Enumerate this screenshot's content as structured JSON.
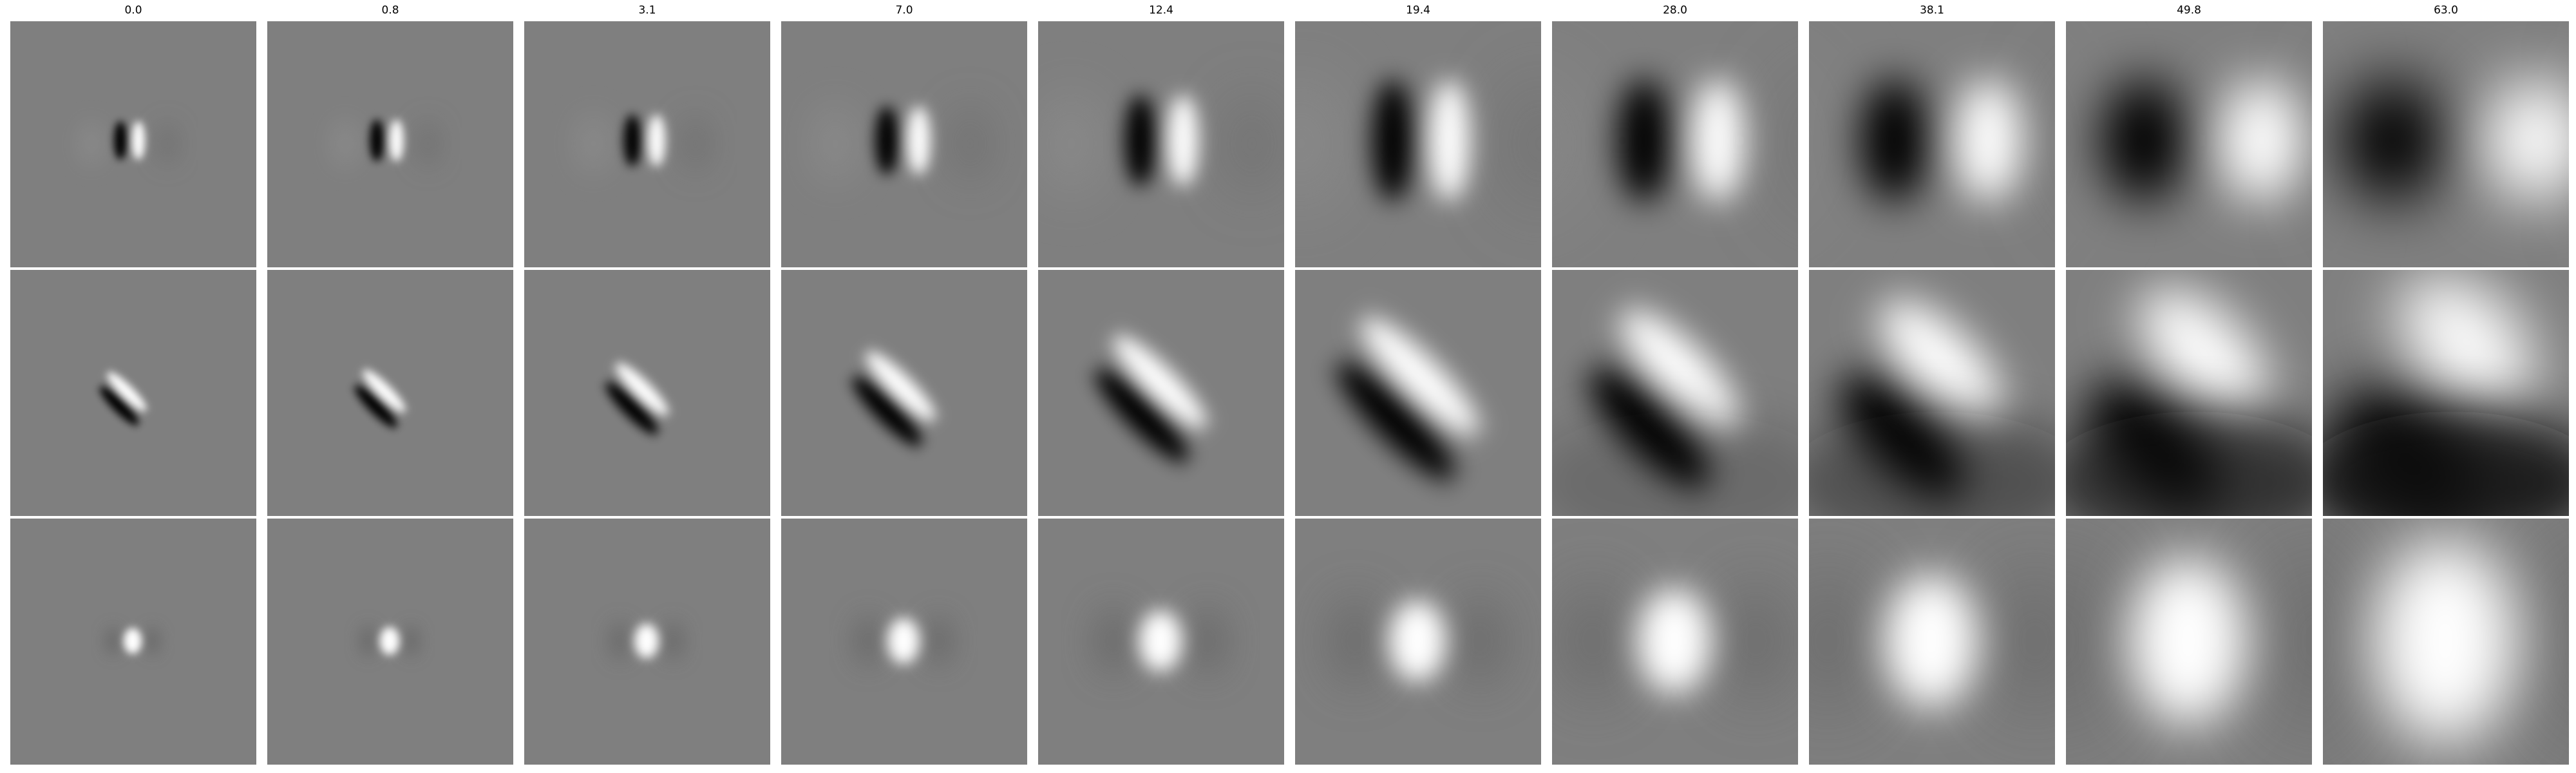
{
  "column_titles": [
    "0.0",
    "0.8",
    "3.1",
    "7.0",
    "12.4",
    "19.4",
    "28.0",
    "38.1",
    "49.8",
    "63.0"
  ],
  "rows": [
    {
      "pattern": "vertical-dipole",
      "background": "#7f7f7f",
      "cells": [
        {
          "scale": 0.0,
          "contrast": 1.0
        },
        {
          "scale": 0.8,
          "contrast": 1.0
        },
        {
          "scale": 3.1,
          "contrast": 1.0
        },
        {
          "scale": 7.0,
          "contrast": 1.0
        },
        {
          "scale": 12.4,
          "contrast": 1.0
        },
        {
          "scale": 19.4,
          "contrast": 1.0
        },
        {
          "scale": 28.0,
          "contrast": 1.0
        },
        {
          "scale": 38.1,
          "contrast": 1.0
        },
        {
          "scale": 49.8,
          "contrast": 1.0
        },
        {
          "scale": 63.0,
          "contrast": 1.0
        }
      ]
    },
    {
      "pattern": "diagonal-dipole",
      "background": "#7f7f7f",
      "cells": [
        {
          "scale": 0.0,
          "contrast": 1.0
        },
        {
          "scale": 0.8,
          "contrast": 1.0
        },
        {
          "scale": 3.1,
          "contrast": 1.0
        },
        {
          "scale": 7.0,
          "contrast": 1.0
        },
        {
          "scale": 12.4,
          "contrast": 1.0
        },
        {
          "scale": 19.4,
          "contrast": 1.0
        },
        {
          "scale": 28.0,
          "contrast": 1.0
        },
        {
          "scale": 38.1,
          "contrast": 1.0
        },
        {
          "scale": 49.8,
          "contrast": 1.0
        },
        {
          "scale": 63.0,
          "contrast": 1.0
        }
      ]
    },
    {
      "pattern": "center-blob",
      "background": "#7f7f7f",
      "cells": [
        {
          "scale": 0.0,
          "contrast": 1.0
        },
        {
          "scale": 0.8,
          "contrast": 1.0
        },
        {
          "scale": 3.1,
          "contrast": 1.0
        },
        {
          "scale": 7.0,
          "contrast": 1.0
        },
        {
          "scale": 12.4,
          "contrast": 1.0
        },
        {
          "scale": 19.4,
          "contrast": 1.0
        },
        {
          "scale": 28.0,
          "contrast": 1.0
        },
        {
          "scale": 38.1,
          "contrast": 1.0
        },
        {
          "scale": 49.8,
          "contrast": 1.0
        },
        {
          "scale": 63.0,
          "contrast": 1.0
        }
      ]
    }
  ]
}
